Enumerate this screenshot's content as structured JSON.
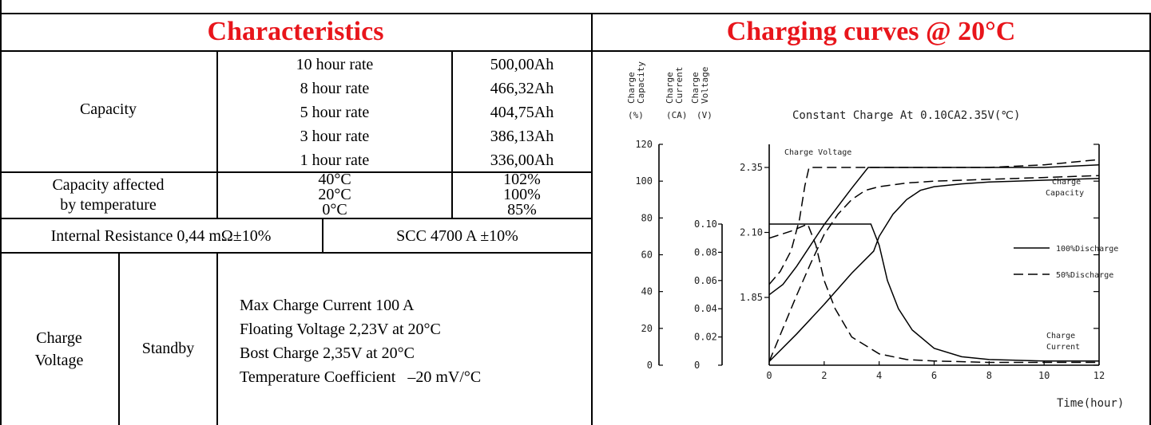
{
  "left_panel": {
    "title": "Characteristics",
    "capacity": {
      "label": "Capacity",
      "rows": [
        {
          "rate": "10 hour rate",
          "value": "500,00Ah"
        },
        {
          "rate": "8 hour rate",
          "value": "466,32Ah"
        },
        {
          "rate": "5 hour rate",
          "value": "404,75Ah"
        },
        {
          "rate": "3 hour rate",
          "value": "386,13Ah"
        },
        {
          "rate": "1 hour rate",
          "value": "336,00Ah"
        }
      ]
    },
    "temperature": {
      "label_line1": "Capacity affected",
      "label_line2": "by temperature",
      "rows": [
        {
          "temp": "40°C",
          "value": "102%"
        },
        {
          "temp": "20°C",
          "value": "100%"
        },
        {
          "temp": "0°C",
          "value": "85%"
        }
      ]
    },
    "internal_resistance": "Internal Resistance 0,44 mΩ±10%",
    "scc": "SCC 4700 A ±10%",
    "charge_voltage": {
      "label_line1": "Charge",
      "label_line2": "Voltage",
      "mode": "Standby",
      "lines": [
        "Max Charge Current 100 A",
        "Floating Voltage 2,23V at 20°C",
        "Bost Charge 2,35V at 20°C",
        "Temperature Coefficient   –20 mV/°C"
      ]
    }
  },
  "right_panel": {
    "title": "Charging curves @ 20°C"
  },
  "chart_data": {
    "type": "line",
    "title": "Constant Charge At 0.10CA2.35V(℃)",
    "xlabel": "Time(hour)",
    "x_ticks": [
      "0",
      "2",
      "4",
      "6",
      "8",
      "10",
      "12"
    ],
    "xlim": [
      0,
      12
    ],
    "axes": {
      "capacity": {
        "label_line1": "Charge",
        "label_line2": "Capacity",
        "unit": "(%)",
        "ticks": [
          "0",
          "20",
          "40",
          "60",
          "80",
          "100",
          "120"
        ],
        "range": [
          0,
          120
        ]
      },
      "current": {
        "label_line1": "Charge",
        "label_line2": "Current",
        "unit": "(CA)",
        "ticks": [
          "0",
          "0.02",
          "0.04",
          "0.06",
          "0.08",
          "0.10"
        ],
        "range": [
          0,
          0.1
        ]
      },
      "voltage": {
        "label_line1": "Charge",
        "label_line2": "Voltage",
        "unit": "(V)",
        "ticks": [
          "1.85",
          "2.10",
          "2.35"
        ],
        "range": [
          1.85,
          2.35
        ]
      }
    },
    "annotations": {
      "voltage": "Charge Voltage",
      "capacity_1": "Charge",
      "capacity_2": "Capacity",
      "current_1": "Charge",
      "current_2": "Current"
    },
    "legend": [
      {
        "name": "100%Discharge",
        "style": "solid"
      },
      {
        "name": "50%Discharge",
        "style": "dashed"
      }
    ],
    "series": [
      {
        "name": "Charge Voltage 100%Discharge",
        "style": "solid",
        "axis": "voltage",
        "points": [
          [
            0,
            1.86
          ],
          [
            0.5,
            1.9
          ],
          [
            1,
            1.97
          ],
          [
            1.5,
            2.05
          ],
          [
            2,
            2.13
          ],
          [
            2.5,
            2.2
          ],
          [
            3,
            2.27
          ],
          [
            3.6,
            2.35
          ],
          [
            4,
            2.35
          ],
          [
            6,
            2.35
          ],
          [
            8,
            2.35
          ],
          [
            10,
            2.35
          ],
          [
            12,
            2.36
          ]
        ]
      },
      {
        "name": "Charge Voltage 50%Discharge",
        "style": "dashed",
        "axis": "voltage",
        "points": [
          [
            0,
            1.9
          ],
          [
            0.4,
            1.95
          ],
          [
            0.8,
            2.03
          ],
          [
            1.1,
            2.15
          ],
          [
            1.3,
            2.28
          ],
          [
            1.45,
            2.35
          ],
          [
            2,
            2.35
          ],
          [
            4,
            2.35
          ],
          [
            6,
            2.35
          ],
          [
            8,
            2.35
          ],
          [
            10,
            2.36
          ],
          [
            12,
            2.38
          ]
        ]
      },
      {
        "name": "Charge Capacity 100%Discharge",
        "style": "solid",
        "axis": "capacity",
        "points": [
          [
            0,
            2
          ],
          [
            1,
            17
          ],
          [
            2,
            33
          ],
          [
            3,
            50
          ],
          [
            3.8,
            62
          ],
          [
            4,
            70
          ],
          [
            4.5,
            82
          ],
          [
            5,
            90
          ],
          [
            5.5,
            95
          ],
          [
            6,
            97
          ],
          [
            7,
            98.5
          ],
          [
            8,
            99.5
          ],
          [
            10,
            100.5
          ],
          [
            12,
            101.5
          ]
        ]
      },
      {
        "name": "Charge Capacity 50%Discharge",
        "style": "dashed",
        "axis": "capacity",
        "points": [
          [
            0,
            2
          ],
          [
            0.5,
            20
          ],
          [
            1,
            38
          ],
          [
            1.5,
            55
          ],
          [
            2,
            71
          ],
          [
            2.5,
            82
          ],
          [
            3,
            90
          ],
          [
            3.5,
            95
          ],
          [
            4,
            97
          ],
          [
            5,
            99
          ],
          [
            6,
            100
          ],
          [
            8,
            101
          ],
          [
            10,
            102
          ],
          [
            12,
            103
          ]
        ]
      },
      {
        "name": "Charge Current 100%Discharge",
        "style": "solid",
        "axis": "current",
        "points": [
          [
            0,
            0.1
          ],
          [
            3.7,
            0.1
          ],
          [
            4,
            0.085
          ],
          [
            4.3,
            0.06
          ],
          [
            4.7,
            0.04
          ],
          [
            5.2,
            0.025
          ],
          [
            6,
            0.012
          ],
          [
            7,
            0.006
          ],
          [
            8,
            0.004
          ],
          [
            10,
            0.003
          ],
          [
            12,
            0.003
          ]
        ]
      },
      {
        "name": "Charge Current 50%Discharge",
        "style": "dashed",
        "axis": "current",
        "points": [
          [
            0,
            0.09
          ],
          [
            0.8,
            0.095
          ],
          [
            1.4,
            0.1
          ],
          [
            1.7,
            0.085
          ],
          [
            2,
            0.06
          ],
          [
            2.4,
            0.04
          ],
          [
            3,
            0.02
          ],
          [
            4,
            0.008
          ],
          [
            5,
            0.004
          ],
          [
            6,
            0.003
          ],
          [
            8,
            0.002
          ],
          [
            12,
            0.002
          ]
        ]
      }
    ]
  }
}
